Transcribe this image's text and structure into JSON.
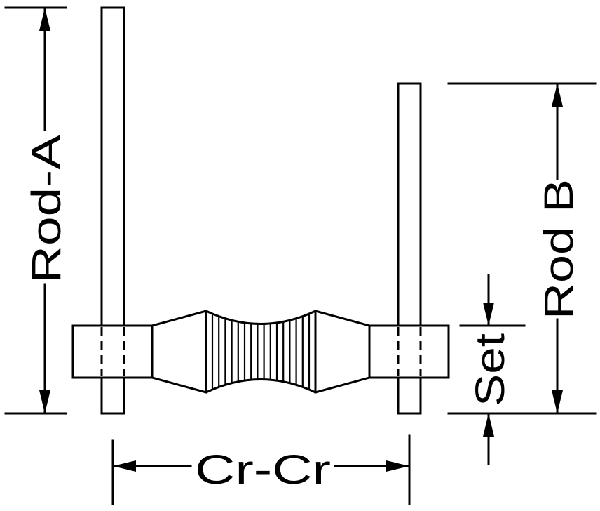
{
  "labels": {
    "rod_a": "Rod-A",
    "rod_b": "Rod B",
    "set": "Set",
    "cr_cr": "Cr-Cr"
  },
  "colors": {
    "stroke": "#000000",
    "background": "#ffffff"
  }
}
